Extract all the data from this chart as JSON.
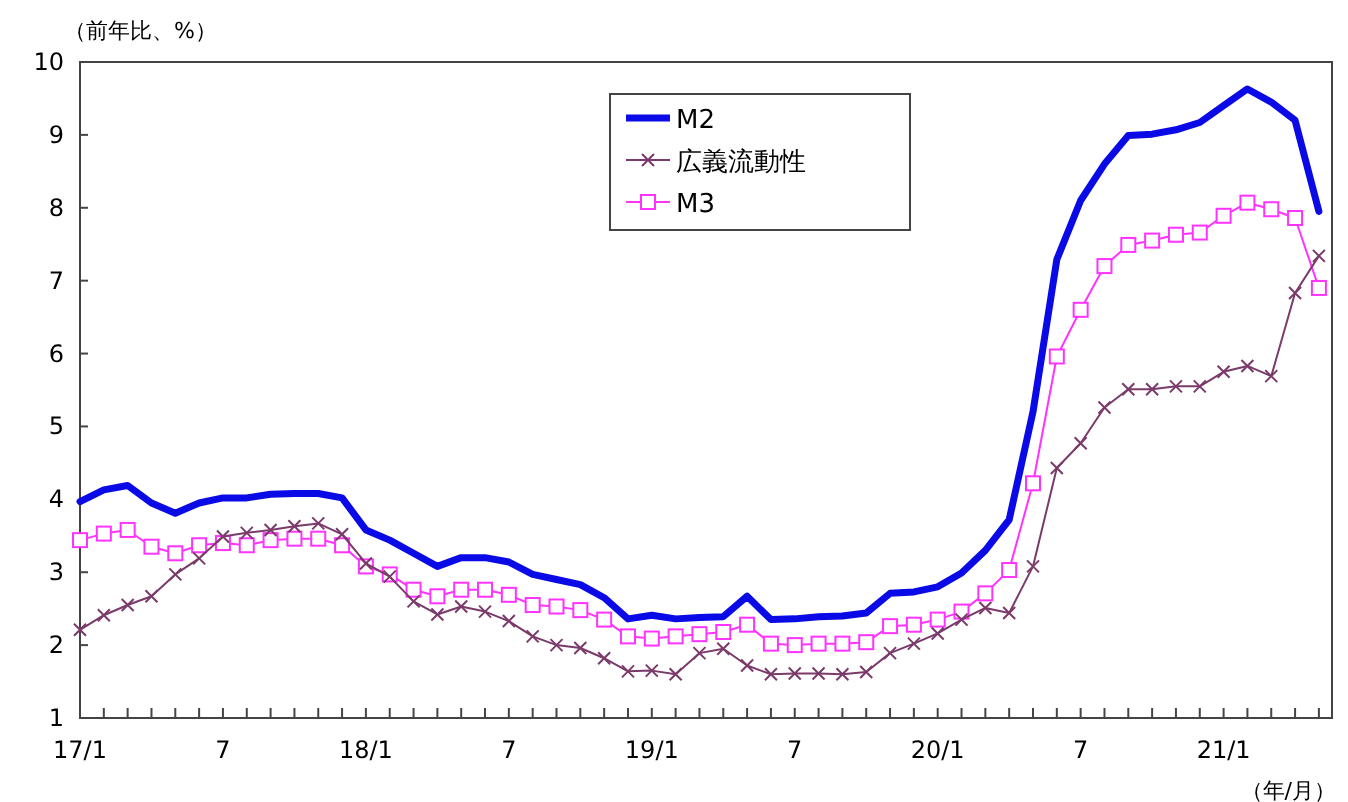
{
  "chart_data": {
    "type": "line",
    "ylabel": "（前年比、%）",
    "xlabel": "（年/月）",
    "categories": [
      "17/1",
      null,
      null,
      null,
      null,
      null,
      "7",
      null,
      null,
      null,
      null,
      null,
      "18/1",
      null,
      null,
      null,
      null,
      null,
      "7",
      null,
      null,
      null,
      null,
      null,
      "19/1",
      null,
      null,
      null,
      null,
      null,
      "7",
      null,
      null,
      null,
      null,
      null,
      "20/1",
      null,
      null,
      null,
      null,
      null,
      "7",
      null,
      null,
      null,
      null,
      null,
      "21/1",
      null,
      null,
      null,
      null
    ],
    "ylim": [
      1,
      10
    ],
    "yticks": [
      1,
      2,
      3,
      4,
      5,
      6,
      7,
      8,
      9,
      10
    ],
    "grid": false,
    "legend": "top",
    "series": [
      {
        "name": "M2",
        "color": "#0a0ae6",
        "marker": "none",
        "values": [
          3.97,
          4.13,
          4.19,
          3.95,
          3.81,
          3.95,
          4.02,
          4.02,
          4.07,
          4.08,
          4.08,
          4.02,
          3.58,
          3.44,
          3.26,
          3.08,
          3.2,
          3.2,
          3.14,
          2.97,
          2.9,
          2.83,
          2.65,
          2.36,
          2.41,
          2.36,
          2.38,
          2.39,
          2.67,
          2.35,
          2.36,
          2.39,
          2.4,
          2.44,
          2.71,
          2.73,
          2.8,
          2.99,
          3.3,
          3.72,
          5.2,
          7.29,
          8.1,
          8.6,
          8.99,
          9.01,
          9.07,
          9.17,
          9.4,
          9.63,
          9.45,
          9.2,
          7.95
        ]
      },
      {
        "name": "広義流動性",
        "color": "#7a3a6a",
        "marker": "cross",
        "values": [
          2.21,
          2.41,
          2.55,
          2.67,
          2.97,
          3.19,
          3.49,
          3.54,
          3.58,
          3.63,
          3.67,
          3.52,
          3.12,
          2.94,
          2.6,
          2.42,
          2.53,
          2.46,
          2.33,
          2.12,
          2.0,
          1.96,
          1.82,
          1.64,
          1.65,
          1.6,
          1.89,
          1.95,
          1.72,
          1.6,
          1.61,
          1.61,
          1.6,
          1.63,
          1.89,
          2.02,
          2.16,
          2.35,
          2.51,
          2.44,
          3.08,
          4.43,
          4.77,
          5.26,
          5.51,
          5.51,
          5.55,
          5.55,
          5.75,
          5.83,
          5.69,
          6.83,
          7.34
        ]
      },
      {
        "name": "M3",
        "color": "#ff33ff",
        "marker": "square",
        "values": [
          3.44,
          3.53,
          3.58,
          3.35,
          3.26,
          3.37,
          3.4,
          3.37,
          3.44,
          3.46,
          3.46,
          3.37,
          3.08,
          2.97,
          2.76,
          2.67,
          2.76,
          2.76,
          2.69,
          2.55,
          2.53,
          2.48,
          2.35,
          2.12,
          2.09,
          2.12,
          2.15,
          2.18,
          2.28,
          2.02,
          2.0,
          2.02,
          2.02,
          2.04,
          2.26,
          2.28,
          2.35,
          2.46,
          2.71,
          3.03,
          4.22,
          5.96,
          6.6,
          7.2,
          7.49,
          7.55,
          7.63,
          7.66,
          7.89,
          8.07,
          7.98,
          7.86,
          6.9
        ]
      }
    ]
  }
}
